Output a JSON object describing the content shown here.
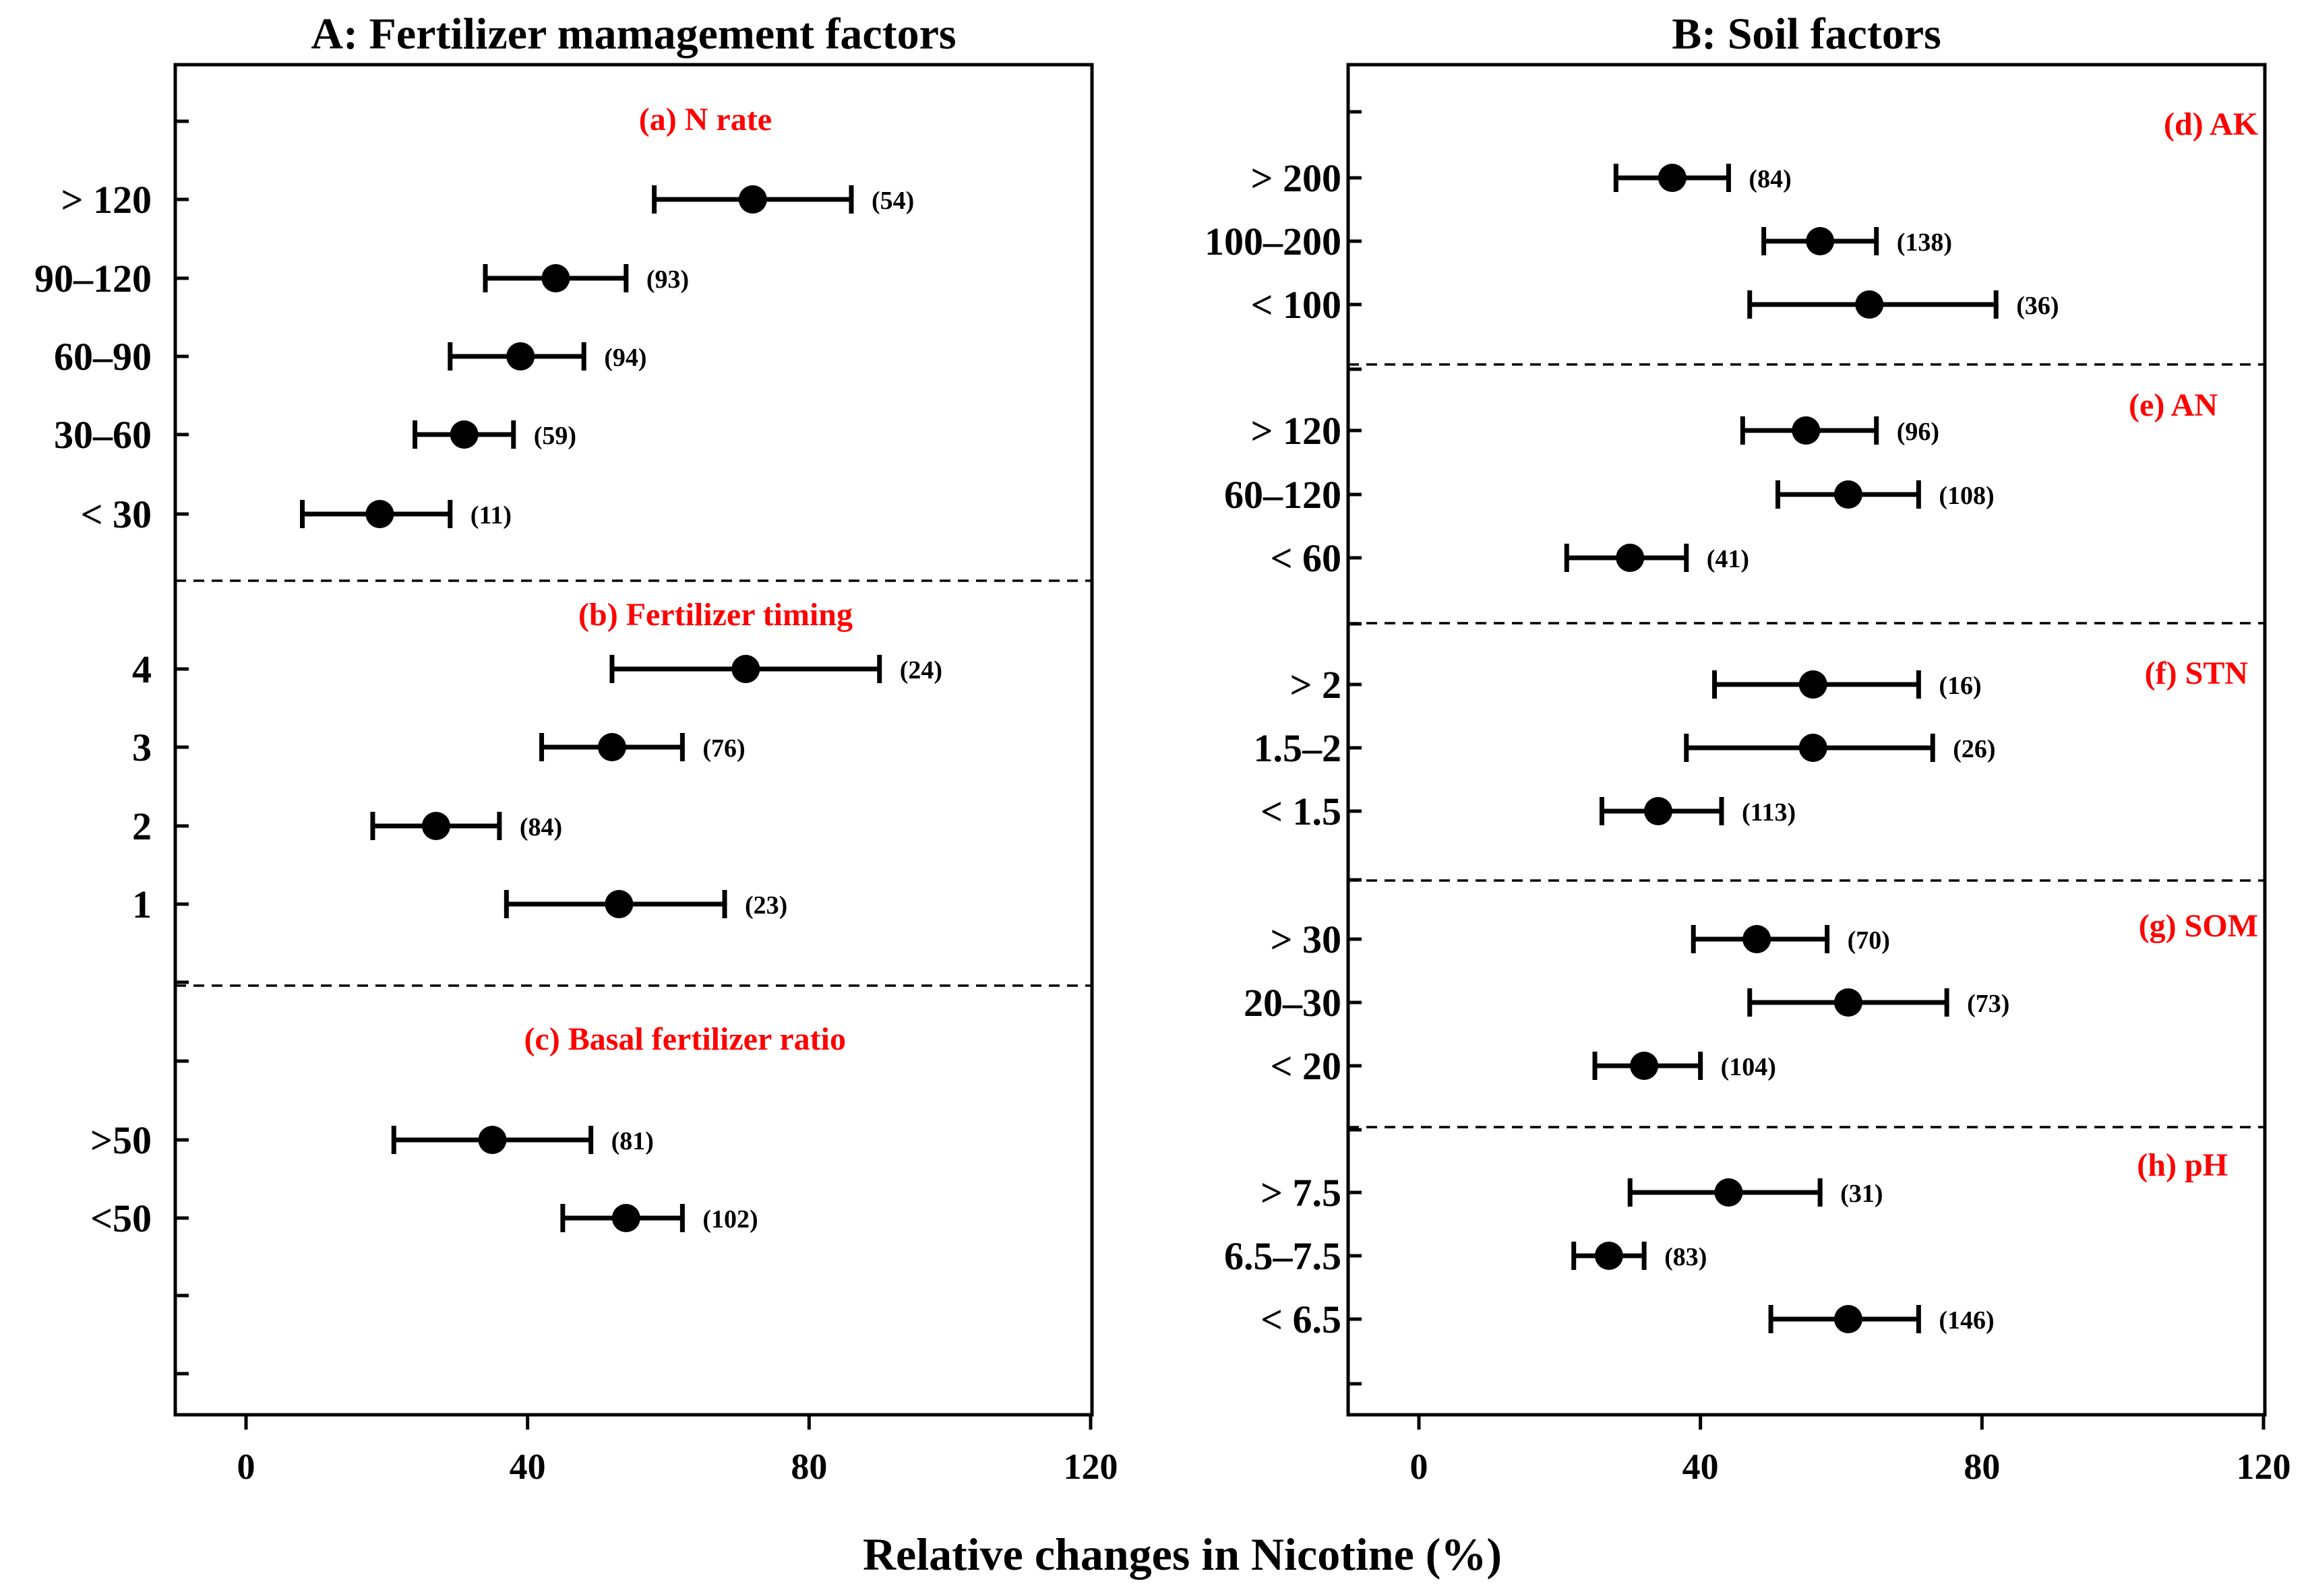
{
  "figure": {
    "xlabel": "Relative changes in Nicotine (%)"
  },
  "chart_data": [
    {
      "type": "scatter",
      "title": "A: Fertilizer mamagement factors",
      "xlabel": "Relative changes in Nicotine (%)",
      "xlim": [
        -10,
        120
      ],
      "xticks": [
        0,
        40,
        80,
        120
      ],
      "error_bars": true,
      "groups": [
        {
          "label": "(a) N rate",
          "items": [
            {
              "category": "> 120",
              "mean": 72,
              "lo": 58,
              "hi": 86,
              "n": "(54)"
            },
            {
              "category": "90–120",
              "mean": 44,
              "lo": 34,
              "hi": 54,
              "n": "(93)"
            },
            {
              "category": "60–90",
              "mean": 39,
              "lo": 29,
              "hi": 48,
              "n": "(94)"
            },
            {
              "category": "30–60",
              "mean": 31,
              "lo": 24,
              "hi": 38,
              "n": "(59)"
            },
            {
              "category": "< 30",
              "mean": 19,
              "lo": 8,
              "hi": 29,
              "n": "(11)"
            }
          ]
        },
        {
          "label": "(b) Fertilizer timing",
          "items": [
            {
              "category": "4",
              "mean": 71,
              "lo": 52,
              "hi": 90,
              "n": "(24)"
            },
            {
              "category": "3",
              "mean": 52,
              "lo": 42,
              "hi": 62,
              "n": "(76)"
            },
            {
              "category": "2",
              "mean": 27,
              "lo": 18,
              "hi": 36,
              "n": "(84)"
            },
            {
              "category": "1",
              "mean": 53,
              "lo": 37,
              "hi": 68,
              "n": "(23)"
            }
          ]
        },
        {
          "label": "(c) Basal fertilizer ratio",
          "items": [
            {
              "category": ">50",
              "mean": 35,
              "lo": 21,
              "hi": 49,
              "n": "(81)"
            },
            {
              "category": "<50",
              "mean": 54,
              "lo": 45,
              "hi": 62,
              "n": "(102)"
            }
          ]
        }
      ]
    },
    {
      "type": "scatter",
      "title": "B: Soil factors",
      "xlabel": "Relative changes in Nicotine (%)",
      "xlim": [
        -10,
        120
      ],
      "xticks": [
        0,
        40,
        80,
        120
      ],
      "error_bars": true,
      "groups": [
        {
          "label": "(d) AK",
          "items": [
            {
              "category": "> 200",
              "mean": 36,
              "lo": 28,
              "hi": 44,
              "n": "(84)"
            },
            {
              "category": "100–200",
              "mean": 57,
              "lo": 49,
              "hi": 65,
              "n": "(138)"
            },
            {
              "category": "< 100",
              "mean": 64,
              "lo": 47,
              "hi": 82,
              "n": "(36)"
            }
          ]
        },
        {
          "label": "(e) AN",
          "items": [
            {
              "category": "> 120",
              "mean": 55,
              "lo": 46,
              "hi": 65,
              "n": "(96)"
            },
            {
              "category": "60–120",
              "mean": 61,
              "lo": 51,
              "hi": 71,
              "n": "(108)"
            },
            {
              "category": "< 60",
              "mean": 30,
              "lo": 21,
              "hi": 38,
              "n": "(41)"
            }
          ]
        },
        {
          "label": "(f) STN",
          "items": [
            {
              "category": "> 2",
              "mean": 56,
              "lo": 42,
              "hi": 71,
              "n": "(16)"
            },
            {
              "category": "1.5–2",
              "mean": 56,
              "lo": 38,
              "hi": 73,
              "n": "(26)"
            },
            {
              "category": "< 1.5",
              "mean": 34,
              "lo": 26,
              "hi": 43,
              "n": "(113)"
            }
          ]
        },
        {
          "label": "(g) SOM",
          "items": [
            {
              "category": "> 30",
              "mean": 48,
              "lo": 39,
              "hi": 58,
              "n": "(70)"
            },
            {
              "category": "20–30",
              "mean": 61,
              "lo": 47,
              "hi": 75,
              "n": "(73)"
            },
            {
              "category": "< 20",
              "mean": 32,
              "lo": 25,
              "hi": 40,
              "n": "(104)"
            }
          ]
        },
        {
          "label": "(h) pH",
          "items": [
            {
              "category": "> 7.5",
              "mean": 44,
              "lo": 30,
              "hi": 57,
              "n": "(31)"
            },
            {
              "category": "6.5–7.5",
              "mean": 27,
              "lo": 22,
              "hi": 32,
              "n": "(83)"
            },
            {
              "category": "< 6.5",
              "mean": 61,
              "lo": 50,
              "hi": 71,
              "n": "(146)"
            }
          ]
        }
      ]
    }
  ],
  "colors": {
    "points": "#000000",
    "group_labels": "#ff0000",
    "axes": "#000000",
    "separators": "#000000"
  }
}
